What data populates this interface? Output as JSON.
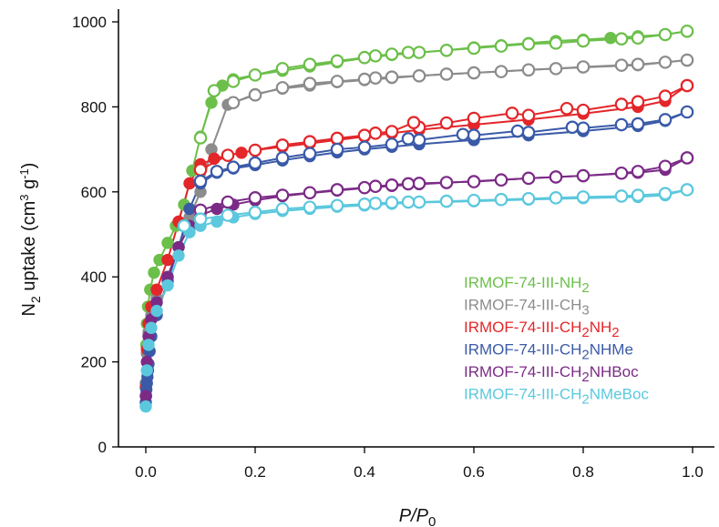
{
  "chart_data": {
    "type": "scatter",
    "xlabel": {
      "main": "P/P",
      "sub": "0"
    },
    "ylabel": {
      "pre": "N",
      "sub": "2",
      "mid": " uptake (cm",
      "sup": "3",
      "mid2": " g",
      "sup2": "-1",
      "post": ")"
    },
    "xlim": [
      -0.05,
      1.04
    ],
    "ylim": [
      0,
      1030
    ],
    "xticks": [
      0.0,
      0.2,
      0.4,
      0.6,
      0.8,
      1.0
    ],
    "xtick_labels": [
      "0.0",
      "0.2",
      "0.4",
      "0.6",
      "0.8",
      "1.0"
    ],
    "yticks": [
      0,
      200,
      400,
      600,
      800,
      1000
    ],
    "ytick_labels": [
      "0",
      "200",
      "400",
      "600",
      "800",
      "1000"
    ],
    "legend_placement": "bottom-right",
    "series": [
      {
        "name": "IRMOF-74-III-NH2",
        "legend": {
          "a": "IRMOF-74-III-NH",
          "b": "2",
          "c": ""
        },
        "color": "#6cbf4a",
        "adsorption": {
          "x": [
            0.0,
            0.001,
            0.002,
            0.004,
            0.008,
            0.015,
            0.025,
            0.04,
            0.055,
            0.07,
            0.085,
            0.1,
            0.12,
            0.14,
            0.16,
            0.2,
            0.25,
            0.3,
            0.35,
            0.4,
            0.45,
            0.5,
            0.55,
            0.6,
            0.65,
            0.7,
            0.75,
            0.8,
            0.85,
            0.9,
            0.95,
            0.99
          ],
          "y": [
            150,
            240,
            290,
            330,
            370,
            410,
            440,
            480,
            520,
            570,
            650,
            730,
            810,
            850,
            865,
            875,
            885,
            895,
            905,
            915,
            922,
            928,
            933,
            940,
            945,
            950,
            955,
            958,
            962,
            966,
            970,
            978
          ]
        },
        "desorption": {
          "x": [
            0.99,
            0.95,
            0.9,
            0.87,
            0.8,
            0.75,
            0.7,
            0.65,
            0.6,
            0.55,
            0.5,
            0.48,
            0.45,
            0.42,
            0.4,
            0.35,
            0.3,
            0.25,
            0.2,
            0.16,
            0.125,
            0.1
          ],
          "y": [
            978,
            970,
            962,
            960,
            955,
            950,
            948,
            943,
            938,
            933,
            928,
            928,
            924,
            920,
            916,
            908,
            900,
            890,
            875,
            860,
            838,
            727
          ]
        }
      },
      {
        "name": "IRMOF-74-III-CH3",
        "legend": {
          "a": "IRMOF-74-III-CH",
          "b": "3",
          "c": ""
        },
        "color": "#8c8c8c",
        "adsorption": {
          "x": [
            0.0,
            0.002,
            0.005,
            0.01,
            0.02,
            0.04,
            0.06,
            0.08,
            0.1,
            0.12,
            0.15,
            0.2,
            0.25,
            0.3,
            0.35,
            0.4,
            0.45,
            0.5,
            0.6,
            0.7,
            0.8,
            0.9,
            0.99
          ],
          "y": [
            150,
            220,
            270,
            310,
            350,
            400,
            470,
            540,
            600,
            700,
            805,
            830,
            843,
            850,
            858,
            863,
            868,
            873,
            880,
            887,
            893,
            898,
            910
          ]
        },
        "desorption": {
          "x": [
            0.99,
            0.95,
            0.9,
            0.87,
            0.8,
            0.75,
            0.7,
            0.65,
            0.6,
            0.55,
            0.5,
            0.45,
            0.42,
            0.4,
            0.35,
            0.3,
            0.25,
            0.2,
            0.16
          ],
          "y": [
            910,
            905,
            900,
            898,
            894,
            890,
            887,
            883,
            880,
            877,
            873,
            870,
            868,
            865,
            860,
            855,
            845,
            828,
            810
          ]
        }
      },
      {
        "name": "IRMOF-74-III-CH2NH2",
        "legend": {
          "a": "IRMOF-74-III-CH",
          "b": "2",
          "c": "NH",
          "d": "2"
        },
        "color": "#e3262a",
        "adsorption": {
          "x": [
            0.0,
            0.002,
            0.005,
            0.01,
            0.02,
            0.04,
            0.06,
            0.08,
            0.1,
            0.125,
            0.15,
            0.175,
            0.2,
            0.25,
            0.3,
            0.35,
            0.4,
            0.45,
            0.5,
            0.6,
            0.7,
            0.8,
            0.9,
            0.95,
            0.99
          ],
          "y": [
            140,
            230,
            290,
            330,
            370,
            440,
            530,
            620,
            665,
            678,
            686,
            692,
            698,
            706,
            714,
            722,
            730,
            738,
            746,
            758,
            770,
            784,
            800,
            814,
            850
          ]
        },
        "desorption": {
          "x": [
            0.99,
            0.95,
            0.9,
            0.87,
            0.8,
            0.77,
            0.7,
            0.67,
            0.6,
            0.55,
            0.5,
            0.49,
            0.45,
            0.42,
            0.4,
            0.35,
            0.3,
            0.25,
            0.2,
            0.15,
            0.1
          ],
          "y": [
            850,
            825,
            812,
            806,
            792,
            796,
            780,
            785,
            773,
            762,
            752,
            763,
            742,
            738,
            733,
            726,
            718,
            710,
            698,
            686,
            652
          ]
        }
      },
      {
        "name": "IRMOF-74-III-CH2NHMe",
        "legend": {
          "a": "IRMOF-74-III-CH",
          "b": "2",
          "c": "NHMe",
          "d": ""
        },
        "color": "#3a5aa8",
        "adsorption": {
          "x": [
            0.0,
            0.0005,
            0.001,
            0.002,
            0.003,
            0.004,
            0.005,
            0.007,
            0.01,
            0.02,
            0.04,
            0.06,
            0.08,
            0.1,
            0.13,
            0.16,
            0.2,
            0.25,
            0.3,
            0.35,
            0.4,
            0.45,
            0.5,
            0.6,
            0.7,
            0.8,
            0.9,
            0.95,
            0.99
          ],
          "y": [
            105,
            120,
            135,
            150,
            165,
            180,
            195,
            225,
            260,
            310,
            390,
            470,
            560,
            620,
            645,
            655,
            663,
            674,
            684,
            693,
            700,
            706,
            712,
            722,
            733,
            743,
            755,
            767,
            788
          ]
        },
        "desorption": {
          "x": [
            0.99,
            0.95,
            0.9,
            0.87,
            0.8,
            0.78,
            0.7,
            0.68,
            0.6,
            0.58,
            0.5,
            0.48,
            0.45,
            0.4,
            0.35,
            0.3,
            0.25,
            0.2,
            0.16,
            0.13,
            0.1
          ],
          "y": [
            788,
            770,
            760,
            758,
            750,
            752,
            740,
            743,
            733,
            735,
            722,
            725,
            712,
            705,
            700,
            690,
            680,
            668,
            658,
            648,
            625
          ]
        }
      },
      {
        "name": "IRMOF-74-III-CH2NHBoc",
        "legend": {
          "a": "IRMOF-74-III-CH",
          "b": "2",
          "c": "NHBoc",
          "d": ""
        },
        "color": "#7b2b86",
        "adsorption": {
          "x": [
            0.0,
            0.002,
            0.005,
            0.01,
            0.02,
            0.04,
            0.06,
            0.08,
            0.1,
            0.13,
            0.16,
            0.2,
            0.25,
            0.3,
            0.35,
            0.4,
            0.45,
            0.5,
            0.6,
            0.7,
            0.8,
            0.9,
            0.95,
            0.99
          ],
          "y": [
            120,
            200,
            260,
            300,
            340,
            400,
            470,
            520,
            545,
            560,
            570,
            580,
            590,
            597,
            603,
            609,
            614,
            618,
            625,
            632,
            638,
            645,
            652,
            680
          ]
        },
        "desorption": {
          "x": [
            0.99,
            0.95,
            0.9,
            0.87,
            0.8,
            0.75,
            0.7,
            0.65,
            0.6,
            0.55,
            0.5,
            0.48,
            0.45,
            0.42,
            0.4,
            0.35,
            0.3,
            0.25,
            0.2,
            0.15,
            0.1
          ],
          "y": [
            680,
            660,
            648,
            644,
            638,
            635,
            632,
            628,
            624,
            622,
            620,
            619,
            616,
            613,
            610,
            605,
            598,
            592,
            586,
            576,
            557
          ]
        }
      },
      {
        "name": "IRMOF-74-III-CH2NMeBoc",
        "legend": {
          "a": "IRMOF-74-III-CH",
          "b": "2",
          "c": "NMeBoc",
          "d": ""
        },
        "color": "#5bc8dd",
        "adsorption": {
          "x": [
            0.0,
            0.002,
            0.005,
            0.01,
            0.02,
            0.04,
            0.06,
            0.08,
            0.1,
            0.13,
            0.16,
            0.2,
            0.25,
            0.3,
            0.35,
            0.4,
            0.45,
            0.5,
            0.6,
            0.7,
            0.8,
            0.9,
            0.95,
            0.99
          ],
          "y": [
            95,
            180,
            240,
            280,
            320,
            380,
            450,
            505,
            520,
            530,
            540,
            548,
            555,
            560,
            565,
            568,
            572,
            575,
            578,
            582,
            585,
            588,
            592,
            605
          ]
        },
        "desorption": {
          "x": [
            0.99,
            0.95,
            0.9,
            0.87,
            0.8,
            0.75,
            0.7,
            0.65,
            0.6,
            0.55,
            0.5,
            0.48,
            0.45,
            0.42,
            0.4,
            0.35,
            0.3,
            0.25,
            0.2,
            0.15,
            0.1,
            0.07
          ],
          "y": [
            605,
            596,
            592,
            590,
            588,
            586,
            584,
            582,
            580,
            578,
            576,
            576,
            575,
            573,
            571,
            568,
            564,
            560,
            552,
            545,
            536,
            520
          ]
        }
      }
    ]
  }
}
